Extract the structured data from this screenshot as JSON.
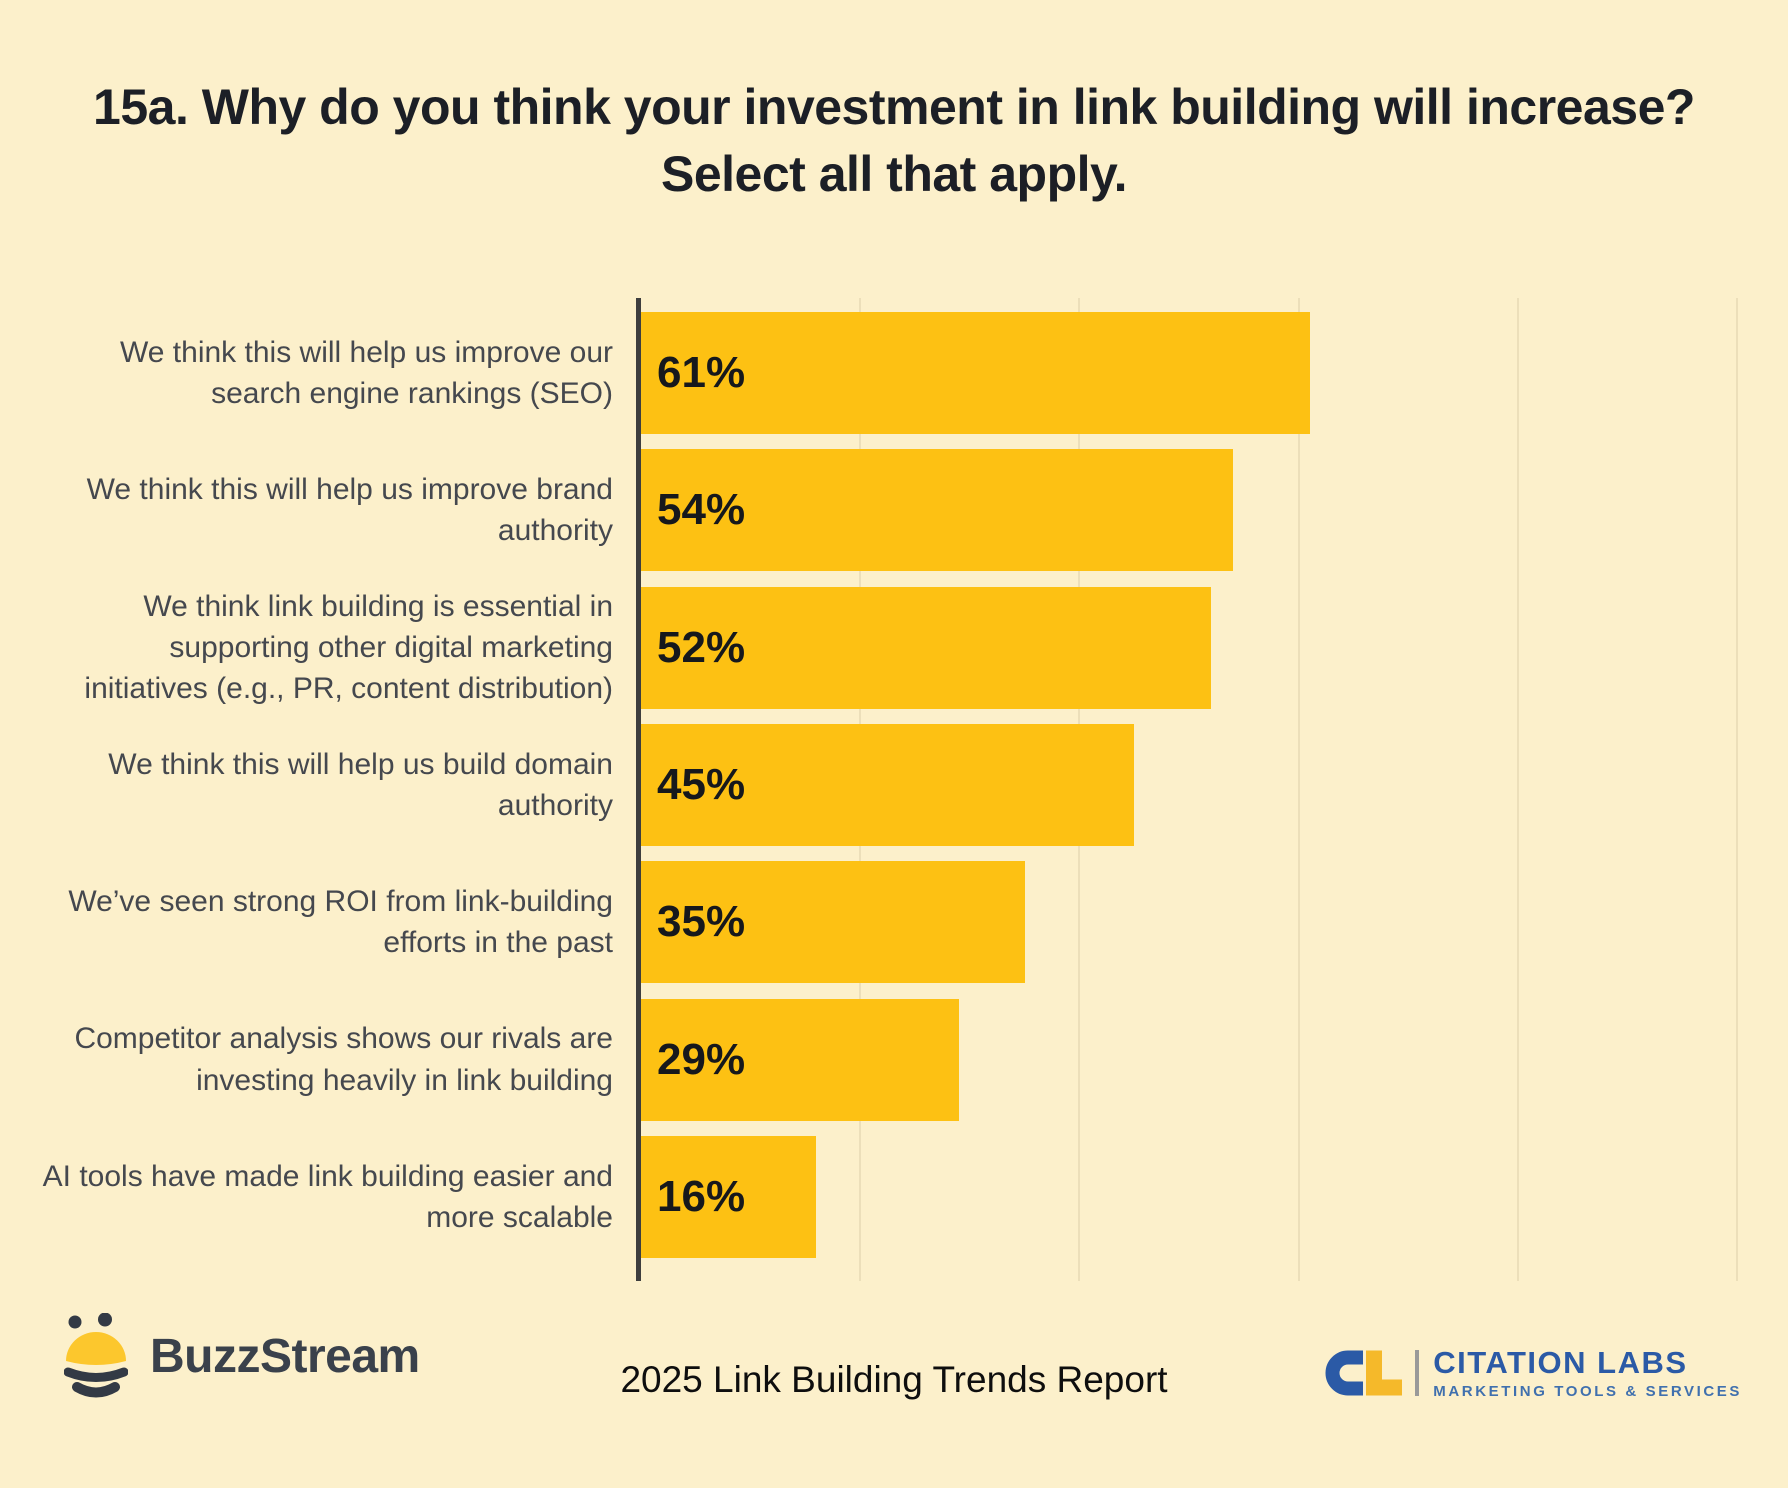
{
  "title": "15a. Why do you think your investment in link building will increase? Select all that apply.",
  "chart_data": {
    "type": "bar",
    "orientation": "horizontal",
    "title": "15a. Why do you think your investment in link building will increase? Select all that apply.",
    "categories": [
      "We think this will help us improve our search engine rankings (SEO)",
      "We think this will help us improve brand authority",
      "We think link building is essential in supporting other digital marketing initiatives (e.g., PR, content distribution)",
      "We think this will help us build domain authority",
      "We’ve seen strong ROI from link-building efforts in the past",
      "Competitor analysis shows our rivals are investing heavily in link building",
      "AI tools have made link building easier and more scalable"
    ],
    "values": [
      61,
      54,
      52,
      45,
      35,
      29,
      16
    ],
    "value_labels": [
      "61%",
      "54%",
      "52%",
      "45%",
      "35%",
      "29%",
      "16%"
    ],
    "xlabel": "",
    "ylabel": "",
    "xlim": [
      0,
      100
    ],
    "gridline_interval_pct": 20,
    "grid_on": true,
    "legend": "none",
    "bar_color": "#FDC113",
    "axis_color": "#3E3E3E",
    "grid_color": "#ECDFBA",
    "label_color": "#45484E",
    "value_label_color": "#16181C"
  },
  "footer": {
    "buzzstream_wordmark": "BuzzStream",
    "report_title": "2025 Link Building Trends Report",
    "citation_labs": {
      "monogram": "CL",
      "name": "CITATION LABS",
      "tagline": "MARKETING TOOLS & SERVICES",
      "blue": "#2B5AA6",
      "yellow": "#F5B92A"
    }
  },
  "colors": {
    "background": "#FCF0CB",
    "title_text": "#1C1F26",
    "bee_dark": "#333A45",
    "bee_yellow": "#FCC72D"
  }
}
